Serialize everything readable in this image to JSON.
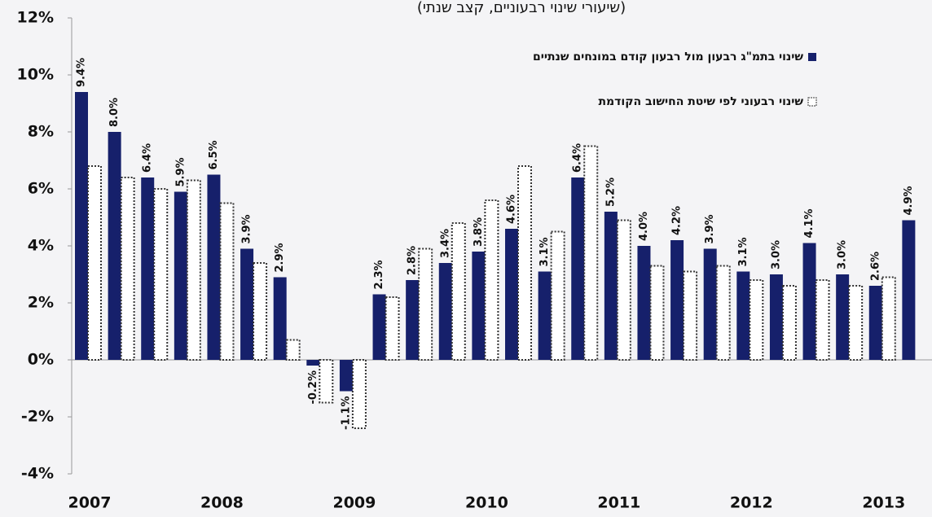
{
  "chart_data": {
    "type": "bar",
    "subtitle": "(שיעורי שינוי רבעוניים, קצב שנתי)",
    "categories": [
      "2007",
      null,
      null,
      null,
      "2008",
      null,
      null,
      null,
      "2009",
      null,
      null,
      null,
      "2010",
      null,
      null,
      null,
      "2011",
      null,
      null,
      null,
      "2012",
      null,
      null,
      null,
      "2013",
      null
    ],
    "series": [
      {
        "name": "שינוי בתמ\"ג רבעון מול רבעון קודם במונחים שנתיים",
        "color": "#16206b",
        "style": "solid",
        "values": [
          9.4,
          8.0,
          6.4,
          5.9,
          6.5,
          3.9,
          2.9,
          -0.2,
          -1.1,
          2.3,
          2.8,
          3.4,
          3.8,
          4.6,
          3.1,
          6.4,
          5.2,
          4.0,
          4.2,
          3.9,
          3.1,
          3.0,
          4.1,
          3.0,
          2.6,
          4.9
        ],
        "value_labels": [
          "9.4%",
          "8.0%",
          "6.4%",
          "5.9%",
          "6.5%",
          "3.9%",
          "2.9%",
          "-0.2%",
          "-1.1%",
          "2.3%",
          "2.8%",
          "3.4%",
          "3.8%",
          "4.6%",
          "3.1%",
          "6.4%",
          "5.2%",
          "4.0%",
          "4.2%",
          "3.9%",
          "3.1%",
          "3.0%",
          "4.1%",
          "3.0%",
          "2.6%",
          "4.9%"
        ]
      },
      {
        "name": "שינוי רבעוני לפי שיטת החישוב הקודמת",
        "color": "#333333",
        "style": "dotted",
        "values": [
          6.8,
          6.4,
          6.0,
          6.3,
          5.5,
          3.4,
          0.7,
          -1.5,
          -2.4,
          2.2,
          3.9,
          4.8,
          5.6,
          6.8,
          4.5,
          7.5,
          4.9,
          3.3,
          3.1,
          3.3,
          2.8,
          2.6,
          2.8,
          2.6,
          2.9,
          null
        ]
      }
    ],
    "ylim": [
      -4,
      12
    ],
    "yticks": [
      {
        "value": -4,
        "label": "-4%"
      },
      {
        "value": -2,
        "label": "-2%"
      },
      {
        "value": 0,
        "label": "0%"
      },
      {
        "value": 2,
        "label": "2%"
      },
      {
        "value": 4,
        "label": "4%"
      },
      {
        "value": 6,
        "label": "6%"
      },
      {
        "value": 8,
        "label": "8%"
      },
      {
        "value": 10,
        "label": "10%"
      },
      {
        "value": 12,
        "label": "12%"
      }
    ],
    "grid": false,
    "legend": "top-right"
  }
}
